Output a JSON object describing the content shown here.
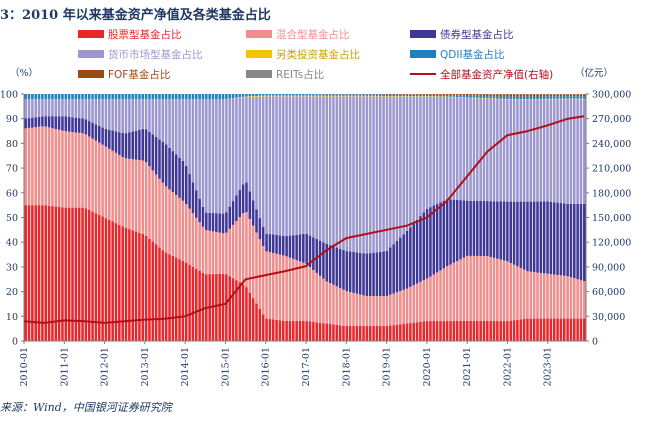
{
  "figure": {
    "title": "3：2010 年以来基金资产净值及各类基金占比",
    "source": "来源：Wind，中国银河证券研究院"
  },
  "chart_data": {
    "type": "bar",
    "stacked": true,
    "title": "2010 年以来基金资产净值及各类基金占比",
    "xlabel": "",
    "ylabel_left": "（%）",
    "ylabel_right": "（亿元）",
    "ylim_left": [
      0,
      100
    ],
    "ylim_right": [
      0,
      300000
    ],
    "yticks_left": [
      "0",
      "10",
      "20",
      "30",
      "40",
      "50",
      "60",
      "70",
      "80",
      "90",
      "100"
    ],
    "yticks_right": [
      "0",
      "30,000",
      "60,000",
      "90,000",
      "120,000",
      "150,000",
      "180,000",
      "210,000",
      "240,000",
      "270,000",
      "300,000"
    ],
    "xticks": [
      "2010-01",
      "2011-01",
      "2012-01",
      "2013-01",
      "2014-01",
      "2015-01",
      "2016-01",
      "2017-01",
      "2018-01",
      "2019-01",
      "2020-01",
      "2021-01",
      "2022-01",
      "2023-01"
    ],
    "grid": false,
    "legend_position": "top",
    "x": [
      2010.0,
      2010.5,
      2011.0,
      2011.5,
      2012.0,
      2012.5,
      2013.0,
      2013.5,
      2014.0,
      2014.5,
      2015.0,
      2015.5,
      2016.0,
      2016.5,
      2017.0,
      2017.5,
      2018.0,
      2018.5,
      2019.0,
      2019.5,
      2020.0,
      2020.5,
      2021.0,
      2021.5,
      2022.0,
      2022.5,
      2023.0,
      2023.5,
      2023.9
    ],
    "series": [
      {
        "name": "股票型基金占比",
        "color": "#e8262b",
        "axis": "left",
        "values": [
          55,
          55,
          54,
          54,
          50,
          46,
          43,
          36,
          32,
          27,
          27,
          22,
          9,
          8,
          8,
          7,
          6,
          6,
          6,
          7,
          8,
          8,
          8,
          8,
          8,
          9,
          9,
          9,
          9
        ]
      },
      {
        "name": "混合型基金占比",
        "color": "#f08e8e",
        "axis": "left",
        "values": [
          31,
          32,
          31,
          30,
          29,
          28,
          30,
          27,
          24,
          18,
          16,
          30,
          27,
          26,
          23,
          17,
          14,
          12,
          12,
          14,
          17,
          22,
          26,
          26,
          24,
          19,
          18,
          17,
          15
        ]
      },
      {
        "name": "债券型基金占比",
        "color": "#3f3797",
        "axis": "left",
        "values": [
          4,
          4,
          6,
          6,
          7,
          10,
          13,
          17,
          16,
          7,
          8,
          12,
          7,
          8,
          12,
          15,
          16,
          17,
          18,
          23,
          28,
          27,
          22,
          22,
          24,
          28,
          29,
          29,
          31
        ]
      },
      {
        "name": "货币市场型基金占比",
        "color": "#9d97d0",
        "axis": "left",
        "values": [
          8,
          7,
          7,
          8,
          12,
          14,
          12,
          18,
          26,
          46,
          46,
          33,
          55,
          56,
          55,
          59,
          62,
          63,
          62,
          54,
          45,
          41,
          41,
          41,
          41,
          41,
          41,
          42,
          42
        ]
      },
      {
        "name": "另类投资基金占比",
        "color": "#f5c400",
        "axis": "left",
        "values": [
          0,
          0,
          0,
          0,
          0,
          0,
          0,
          0,
          0,
          0,
          0,
          0.3,
          0.3,
          0.3,
          0.3,
          0.3,
          0.2,
          0.2,
          0.2,
          0.2,
          0.2,
          0.2,
          0.2,
          0.2,
          0.2,
          0.2,
          0.2,
          0.2,
          0.2
        ]
      },
      {
        "name": "QDII基金占比",
        "color": "#1f7fbf",
        "axis": "left",
        "values": [
          2,
          2,
          2,
          2,
          2,
          2,
          2,
          2,
          2,
          2,
          2,
          1,
          0.6,
          0.6,
          0.6,
          0.6,
          0.6,
          0.6,
          0.6,
          0.6,
          0.6,
          0.6,
          0.8,
          0.8,
          1,
          1,
          1,
          1,
          1
        ]
      },
      {
        "name": "FOF基金占比",
        "color": "#9b4a1a",
        "axis": "left",
        "values": [
          0,
          0,
          0,
          0,
          0,
          0,
          0,
          0,
          0,
          0,
          0,
          0,
          0,
          0,
          0,
          0.1,
          0.1,
          0.1,
          0.2,
          0.3,
          0.3,
          0.4,
          0.6,
          0.8,
          1,
          1,
          0.9,
          0.8,
          0.8
        ]
      },
      {
        "name": "REITs占比",
        "color": "#888888",
        "axis": "left",
        "values": [
          0,
          0,
          0,
          0,
          0,
          0,
          0,
          0,
          0,
          0,
          0,
          0,
          0,
          0,
          0,
          0,
          0,
          0,
          0,
          0,
          0,
          0,
          0,
          0.05,
          0.05,
          0.05,
          0.06,
          0.06,
          0.06
        ]
      },
      {
        "name": "全部基金资产净值(右轴)",
        "color": "#b01117",
        "axis": "right",
        "type": "line",
        "values": [
          24000,
          22000,
          25000,
          24000,
          22000,
          24000,
          26000,
          27000,
          30000,
          40000,
          45000,
          75000,
          80000,
          85000,
          91000,
          110000,
          125000,
          130000,
          135000,
          140000,
          150000,
          170000,
          200000,
          230000,
          250000,
          255000,
          262000,
          270000,
          273000
        ]
      }
    ]
  }
}
